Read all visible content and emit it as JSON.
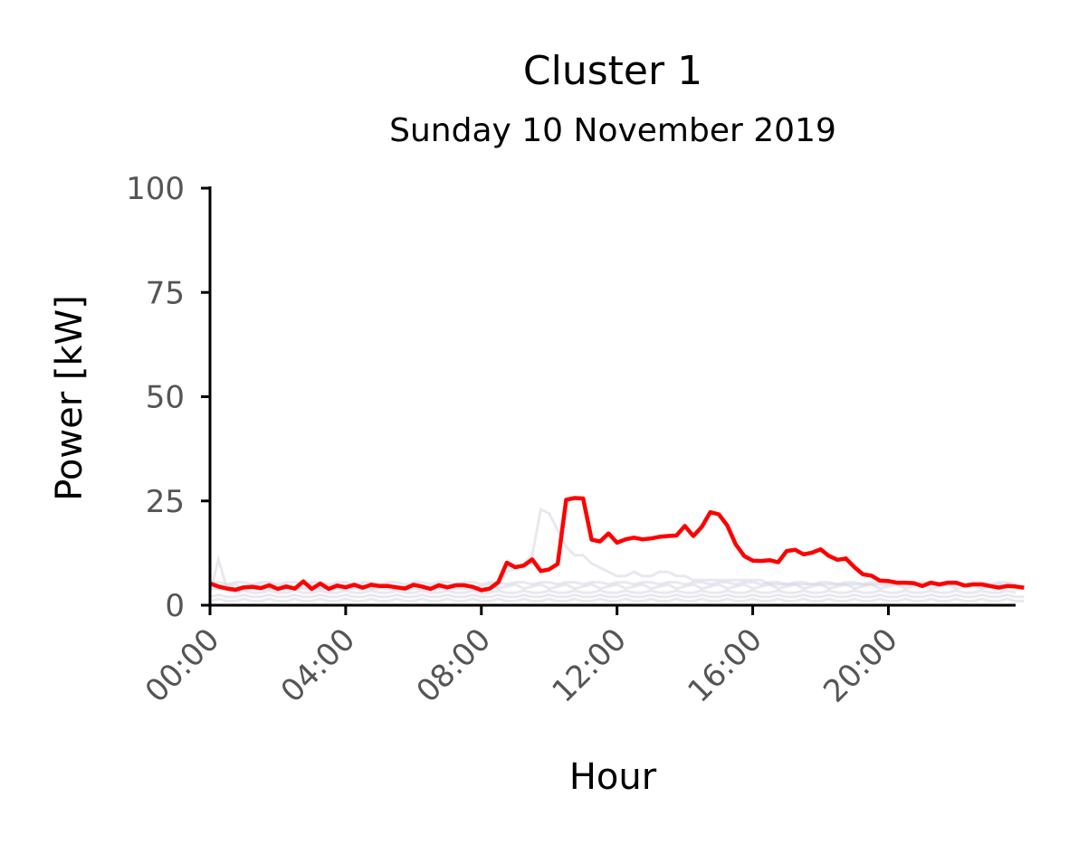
{
  "chart_data": {
    "type": "line",
    "title": "Cluster 1",
    "subtitle": "Sunday 10 November 2019",
    "xlabel": "Hour",
    "ylabel": "Power [kW]",
    "xlim": [
      0,
      23.75
    ],
    "ylim": [
      0,
      100
    ],
    "x_tick_values": [
      0,
      4,
      8,
      12,
      16,
      20
    ],
    "x_tick_labels": [
      "00:00",
      "04:00",
      "08:00",
      "12:00",
      "16:00",
      "20:00"
    ],
    "y_tick_values": [
      0,
      25,
      50,
      75,
      100
    ],
    "y_tick_labels": [
      "0",
      "25",
      "50",
      "75",
      "100"
    ],
    "grid": false,
    "legend": "none",
    "colors": {
      "highlight": "#ff0000",
      "background_series": "#d6d6e2",
      "axis": "#000000",
      "tick_text": "#555555"
    },
    "background_series": [
      {
        "values": [
          5,
          4,
          4.5,
          5,
          4,
          4.5,
          5,
          4,
          4.5,
          5,
          4,
          4.5,
          5,
          4,
          4.5,
          5,
          4,
          4.5,
          5,
          4,
          4.5,
          5,
          4,
          4.5,
          5,
          4,
          4.5,
          5,
          4,
          4.5,
          5,
          4,
          4.5,
          5,
          4,
          4.5,
          5,
          4,
          4.5,
          5,
          4,
          4.5,
          5,
          4,
          4.5,
          5,
          4,
          4.5,
          5,
          4,
          4.5,
          5,
          4,
          4.5,
          5,
          4,
          4.5,
          5,
          4,
          4.5,
          5,
          4,
          4.5,
          5,
          4,
          4.5,
          5,
          4,
          4.5,
          5,
          4,
          4.5,
          5,
          4,
          4.5,
          5,
          4,
          4.5,
          5,
          4,
          4.5,
          5,
          4,
          4.5,
          5,
          4,
          4.5,
          5,
          4,
          4.5,
          5,
          4,
          4.5,
          5,
          4
        ]
      },
      {
        "values": [
          3,
          11,
          4,
          3,
          3.5,
          3,
          3,
          3.5,
          3,
          3,
          3.5,
          3,
          3,
          3.5,
          3,
          3,
          3.5,
          3,
          3,
          3.5,
          3,
          3,
          3.5,
          3,
          3,
          3.5,
          3,
          3,
          3.5,
          3,
          3,
          3.5,
          3,
          3,
          3.5,
          3,
          3,
          3.5,
          3,
          3,
          3.5,
          3,
          3,
          3.5,
          3,
          3,
          3.5,
          3,
          3,
          3.5,
          3,
          3,
          3.5,
          3,
          3,
          3.5,
          3,
          3,
          3.5,
          3,
          3,
          3.5,
          3,
          3,
          3.5,
          3,
          3,
          3.5,
          3,
          3,
          3.5,
          3,
          3,
          3.5,
          3,
          3,
          3.5,
          3,
          3,
          3.5,
          3,
          3,
          3.5,
          3,
          3,
          3.5,
          3,
          3,
          3.5,
          3,
          3,
          3.5,
          3,
          3,
          3.5,
          3
        ]
      },
      {
        "values": [
          2,
          2.5,
          2,
          2,
          2.5,
          2,
          2,
          2.5,
          2,
          2,
          2.5,
          2,
          2,
          2.5,
          2,
          2,
          2.5,
          2,
          2,
          2.5,
          2,
          2,
          2.5,
          2,
          2,
          2.5,
          2,
          2,
          2.5,
          2,
          2,
          2.5,
          2,
          2,
          2.5,
          2,
          2,
          2.5,
          2,
          2,
          2.5,
          2,
          2,
          2.5,
          2,
          2,
          2.5,
          2,
          2,
          2.5,
          2,
          2,
          2.5,
          2,
          2,
          2.5,
          2,
          2,
          2.5,
          2,
          2,
          2.5,
          2,
          2,
          2.5,
          2,
          2,
          2.5,
          2,
          2,
          2.5,
          2,
          2,
          2.5,
          2,
          2,
          2.5,
          2,
          2,
          2.5,
          2,
          2,
          2.5,
          2,
          2,
          2.5,
          2,
          2,
          2.5,
          2,
          2,
          2.5,
          2,
          2,
          2.5,
          2,
          2
        ]
      },
      {
        "values": [
          4,
          4,
          4,
          4,
          4,
          4,
          4,
          4,
          4,
          4,
          4,
          4,
          4,
          4,
          4,
          4,
          4,
          4,
          4,
          4,
          4,
          4,
          4,
          4,
          4,
          4,
          4,
          4,
          4,
          4,
          4,
          4,
          4,
          4,
          5,
          8,
          9,
          10,
          12,
          23,
          22,
          18,
          14,
          12,
          12,
          10,
          9,
          8,
          7,
          7,
          8,
          7,
          7,
          8,
          8,
          7,
          7,
          6,
          6,
          6,
          6,
          6,
          6,
          6,
          6,
          6,
          5,
          5,
          5,
          5,
          5,
          5,
          5,
          5,
          5,
          5,
          5,
          5,
          5,
          5,
          5,
          5,
          5,
          5,
          5,
          5,
          5,
          5,
          5,
          5,
          5,
          5,
          5,
          5,
          5,
          5
        ]
      },
      {
        "values": [
          1,
          1.5,
          1,
          1,
          1.5,
          1,
          1,
          1.5,
          1,
          1,
          1.5,
          1,
          1,
          1.5,
          1,
          1,
          1.5,
          1,
          1,
          1.5,
          1,
          1,
          1.5,
          1,
          1,
          1.5,
          1,
          1,
          1.5,
          1,
          1,
          1.5,
          1,
          1,
          1.5,
          1,
          1,
          1.5,
          1,
          1,
          1.5,
          1,
          1,
          1.5,
          1,
          1,
          1.5,
          1,
          1,
          1.5,
          1,
          1,
          1.5,
          1,
          1,
          1.5,
          1,
          1,
          1.5,
          1,
          1,
          1.5,
          1,
          1,
          1.5,
          1,
          1,
          1.5,
          1,
          1,
          1.5,
          1,
          1,
          1.5,
          1,
          1,
          1.5,
          1,
          1,
          1.5,
          1,
          1,
          1.5,
          1,
          1,
          1.5,
          1,
          1,
          1.5,
          1,
          1,
          1.5,
          1,
          1,
          1.5,
          1,
          1
        ]
      },
      {
        "values": [
          5.5,
          5.5,
          5,
          5.5,
          5.5,
          5,
          5.5,
          5.5,
          5,
          5.5,
          5.5,
          5,
          5.5,
          5.5,
          5,
          5.5,
          5.5,
          5,
          5.5,
          5.5,
          5,
          5.5,
          5.5,
          5,
          5.5,
          5.5,
          5,
          5.5,
          5.5,
          5,
          5.5,
          5.5,
          5,
          5.5,
          5.5,
          5,
          5.5,
          5.5,
          5,
          5.5,
          5.5,
          5,
          5.5,
          5.5,
          5,
          5.5,
          5.5,
          5,
          5.5,
          5.5,
          5,
          5.5,
          5.5,
          5,
          5.5,
          5.5,
          5,
          5.5,
          5.5,
          5,
          5.5,
          5.5,
          5,
          5.5,
          5.5,
          5,
          5.5,
          5.5,
          5,
          5.5,
          5.5,
          5,
          5.5,
          5.5,
          5,
          5.5,
          5.5,
          5,
          5.5,
          5.5,
          5,
          5.5,
          5.5,
          5,
          5.5,
          5.5,
          5,
          5.5,
          5.5,
          5,
          5.5,
          5.5,
          5,
          5.5,
          5.5,
          5
        ]
      }
    ],
    "series": [
      {
        "values": [
          5.2,
          4.5,
          4.0,
          3.7,
          4.3,
          4.4,
          4.1,
          4.8,
          3.9,
          4.5,
          4.0,
          5.7,
          3.9,
          5.2,
          3.9,
          4.7,
          4.3,
          4.9,
          4.2,
          4.9,
          4.6,
          4.6,
          4.3,
          4.0,
          4.9,
          4.5,
          3.9,
          4.8,
          4.3,
          4.8,
          4.8,
          4.4,
          3.6,
          4.0,
          5.5,
          10.2,
          9.1,
          9.5,
          11.0,
          8.2,
          8.6,
          9.9,
          25.3,
          25.7,
          25.6,
          15.7,
          15.3,
          17.2,
          15.0,
          15.8,
          16.2,
          15.8,
          16.0,
          16.4,
          16.6,
          16.7,
          19.0,
          16.6,
          18.8,
          22.3,
          21.8,
          19.1,
          14.6,
          11.8,
          10.7,
          10.6,
          10.8,
          10.3,
          13.0,
          13.3,
          12.2,
          12.6,
          13.4,
          11.8,
          10.9,
          11.2,
          9.1,
          7.4,
          7.1,
          5.9,
          5.8,
          5.4,
          5.4,
          5.3,
          4.6,
          5.4,
          5.0,
          5.4,
          5.4,
          4.7,
          5.0,
          5.0,
          4.6,
          4.2,
          4.6,
          4.5,
          4.2
        ]
      }
    ]
  }
}
